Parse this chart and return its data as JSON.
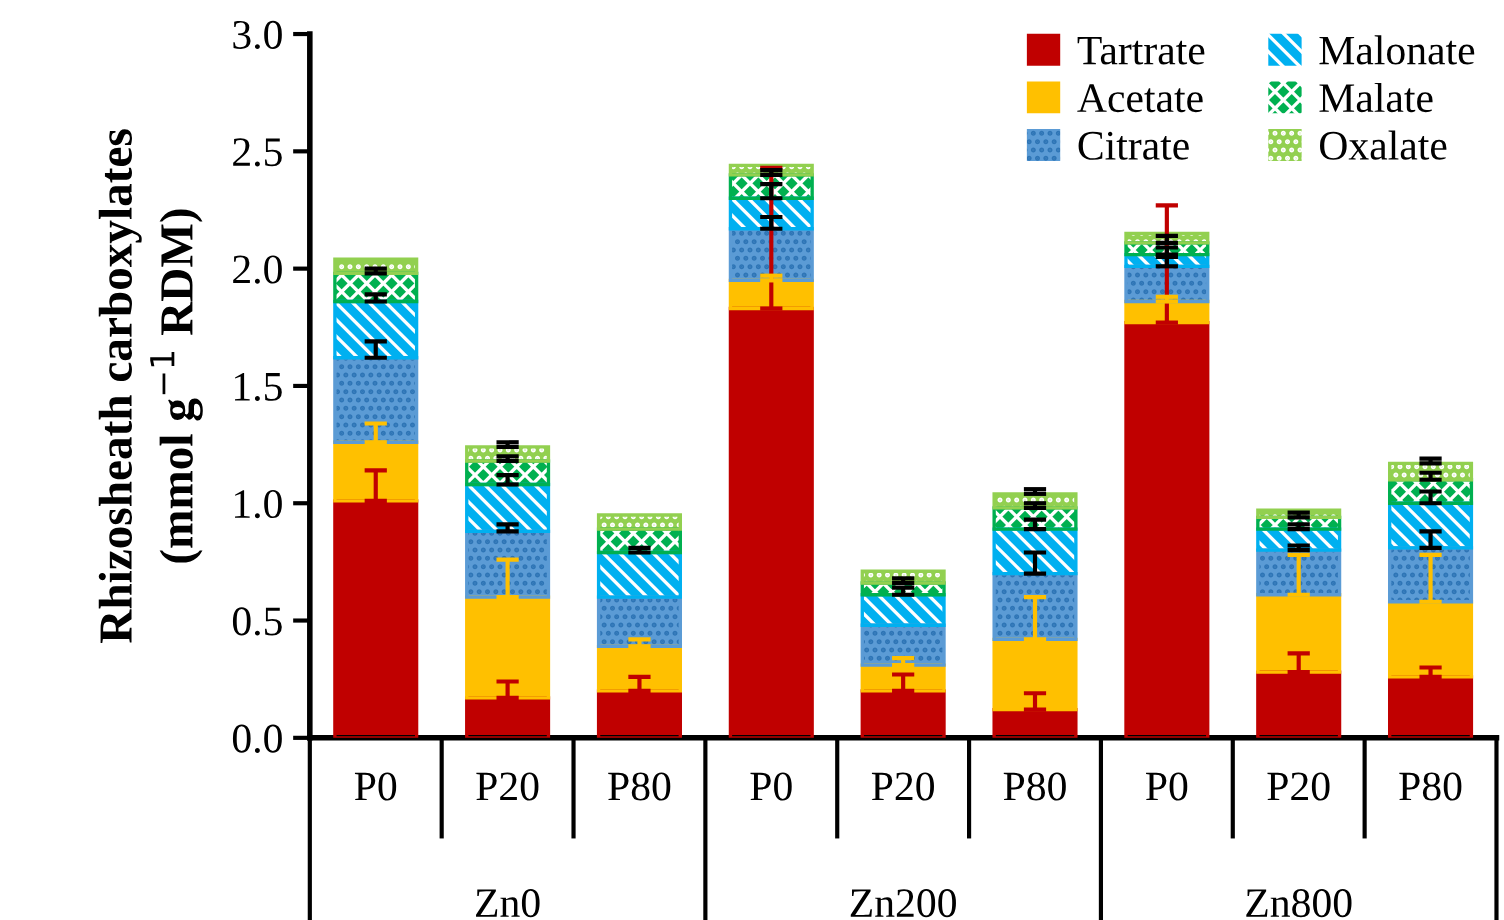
{
  "chart_data": {
    "type": "bar",
    "stacked": true,
    "ylabel": "Rhizosheath carboxylates\n(mmol g$^{−1}$ RDM)",
    "categories": [
      "P0",
      "P20",
      "P80",
      "P0",
      "P20",
      "P80",
      "P0",
      "P20",
      "P80"
    ],
    "annotations": [
      "Zn0",
      "Zn200",
      "Zn800"
    ],
    "series": [
      {
        "name": "Tartrate",
        "color": "#c00000",
        "values": [
          1.01,
          0.17,
          0.2,
          1.83,
          0.2,
          0.12,
          1.77,
          0.28,
          0.26
        ],
        "errors": [
          [
            1.01,
            1.14
          ],
          [
            0.17,
            0.24
          ],
          [
            0.2,
            0.26
          ],
          [
            1.83,
            2.43
          ],
          [
            0.2,
            0.27
          ],
          [
            0.12,
            0.19
          ],
          [
            1.77,
            2.27
          ],
          [
            0.28,
            0.36
          ],
          [
            0.26,
            0.3
          ]
        ]
      },
      {
        "name": "Acetate",
        "color": "#ffc000",
        "values": [
          0.25,
          0.43,
          0.19,
          0.12,
          0.11,
          0.3,
          0.09,
          0.33,
          0.32
        ],
        "errors": [
          [
            1.26,
            1.34
          ],
          [
            0.6,
            0.76
          ],
          [
            0.39,
            0.42
          ],
          [
            1.95,
            1.97
          ],
          [
            0.31,
            0.34
          ],
          [
            0.42,
            0.6
          ],
          [
            1.86,
            1.88
          ],
          [
            0.61,
            0.78
          ],
          [
            0.58,
            0.78
          ]
        ]
      },
      {
        "name": "Citrate",
        "color": "#5b9bd5",
        "values": [
          0.36,
          0.28,
          0.21,
          0.22,
          0.17,
          0.28,
          0.15,
          0.19,
          0.23
        ],
        "errors": [
          [
            1.62,
            1.69
          ],
          [
            0.88,
            0.91
          ],
          null,
          [
            2.17,
            2.22
          ],
          null,
          [
            0.7,
            0.79
          ],
          [
            2.01,
            2.05
          ],
          [
            0.8,
            0.82
          ],
          [
            0.81,
            0.88
          ]
        ]
      },
      {
        "name": "Malonate",
        "color": "#00b0f0",
        "values": [
          0.24,
          0.2,
          0.19,
          0.13,
          0.13,
          0.19,
          0.05,
          0.09,
          0.19
        ],
        "errors": [
          [
            1.86,
            1.89
          ],
          [
            1.08,
            1.12
          ],
          [
            0.79,
            0.81
          ],
          [
            2.3,
            2.36
          ],
          [
            0.61,
            0.64
          ],
          [
            0.89,
            0.93
          ],
          [
            2.06,
            2.09
          ],
          [
            0.89,
            0.91
          ],
          [
            1.0,
            1.05
          ]
        ]
      },
      {
        "name": "Malate",
        "color": "#00b050",
        "values": [
          0.12,
          0.1,
          0.1,
          0.1,
          0.05,
          0.09,
          0.05,
          0.05,
          0.1
        ],
        "errors": [
          [
            1.98,
            2.0
          ],
          [
            1.18,
            1.2
          ],
          null,
          [
            2.4,
            2.42
          ],
          [
            0.66,
            0.68
          ],
          [
            0.98,
            1.0
          ],
          [
            2.11,
            2.14
          ],
          [
            0.94,
            0.96
          ],
          [
            1.1,
            1.13
          ]
        ]
      },
      {
        "name": "Oxalate",
        "color": "#92d050",
        "values": [
          0.06,
          0.06,
          0.06,
          0.04,
          0.05,
          0.06,
          0.04,
          0.03,
          0.07
        ],
        "errors": [
          null,
          [
            1.24,
            1.26
          ],
          null,
          null,
          null,
          [
            1.04,
            1.06
          ],
          null,
          null,
          [
            1.17,
            1.19
          ]
        ]
      }
    ],
    "ylim": [
      0,
      3.0
    ],
    "yticks": [
      {
        "value": 0,
        "label": "0.0"
      },
      {
        "value": 0.5,
        "label": "0.5"
      },
      {
        "value": 1.0,
        "label": "1.0"
      },
      {
        "value": 1.5,
        "label": "1.5"
      },
      {
        "value": 2.0,
        "label": "2.0"
      },
      {
        "value": 2.5,
        "label": "2.5"
      },
      {
        "value": 3.0,
        "label": "3.0"
      }
    ],
    "legend": "top right",
    "grid": false
  }
}
